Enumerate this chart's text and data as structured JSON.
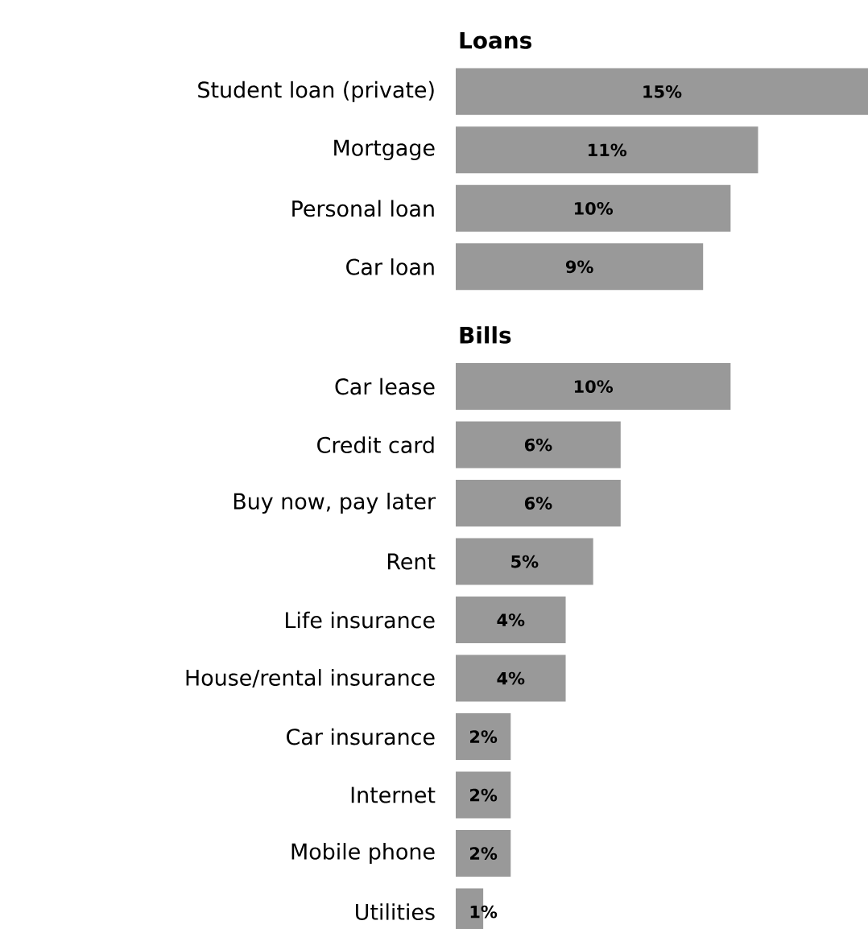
{
  "chart_data": [
    {
      "type": "bar",
      "orientation": "horizontal",
      "title": "Loans",
      "categories": [
        "Student loan (private)",
        "Mortgage",
        "Personal loan",
        "Car loan"
      ],
      "values": [
        15,
        11,
        10,
        9
      ],
      "value_labels": [
        "15%",
        "11%",
        "10%",
        "9%"
      ],
      "color": "#999999"
    },
    {
      "type": "bar",
      "orientation": "horizontal",
      "title": "Bills",
      "categories": [
        "Car lease",
        "Credit card",
        "Buy now, pay later",
        "Rent",
        "Life insurance",
        "House/rental insurance",
        "Car insurance",
        "Internet",
        "Mobile phone",
        "Utilities"
      ],
      "values": [
        10,
        6,
        6,
        5,
        4,
        4,
        2,
        2,
        2,
        1
      ],
      "value_labels": [
        "10%",
        "6%",
        "6%",
        "5%",
        "4%",
        "4%",
        "2%",
        "2%",
        "2%",
        "1%"
      ],
      "color": "#999999"
    }
  ]
}
